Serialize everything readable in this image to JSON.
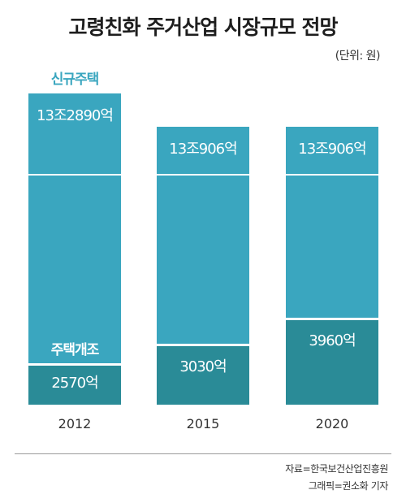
{
  "title": "고령친화 주거산업 시장규모 전망",
  "unit": "(단위: 원)",
  "source": "자료=한국보건산업진흥원",
  "credit": "그래픽=권소화 기자",
  "colors": {
    "new_housing": "#3aa6bf",
    "renovation": "#2a8b97",
    "label_new": "#3aa6bf",
    "value_text": "#ffffff",
    "axis_text": "#333333"
  },
  "chart_data": {
    "type": "bar",
    "stacked": true,
    "categories": [
      "2012",
      "2015",
      "2020"
    ],
    "series": [
      {
        "name": "주택개조",
        "values": [
          2570,
          3030,
          3960
        ],
        "labels": [
          "2570억",
          "3030억",
          "3960억"
        ]
      },
      {
        "name": "신규주택",
        "values": [
          132890,
          130906,
          130906
        ],
        "labels": [
          "13조2890억",
          "13조906억",
          "13조906억"
        ]
      }
    ],
    "unit": "(단위: 원)"
  }
}
